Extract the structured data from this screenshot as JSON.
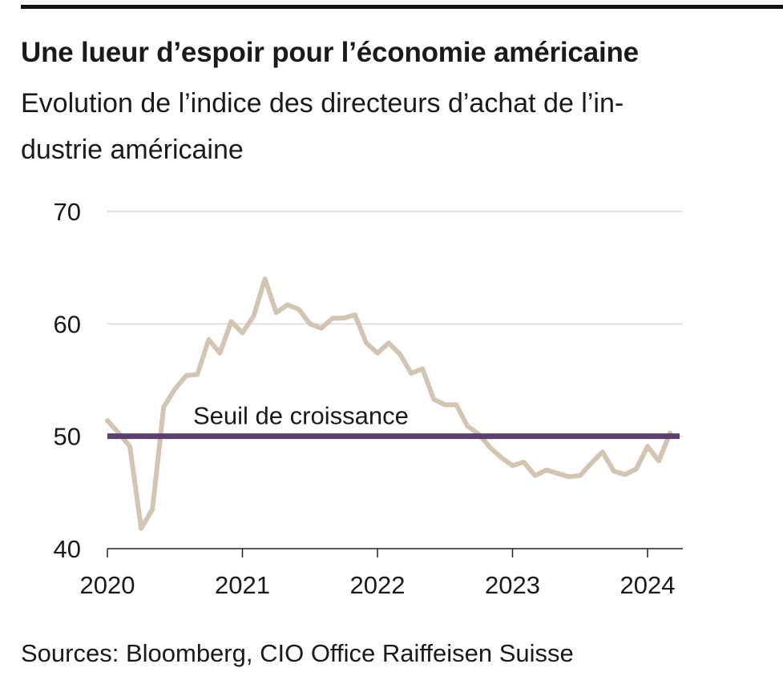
{
  "header": {
    "title": "Une lueur d’espoir pour l’économie américaine",
    "subtitle_line1": "Evolution de l’indice des directeurs d’achat de l’in-",
    "subtitle_line2": "dustrie américaine"
  },
  "footer": {
    "source": "Sources: Bloomberg, CIO Office Raiffeisen Suisse"
  },
  "chart_data": {
    "type": "line",
    "title": "Une lueur d’espoir pour l’économie américaine",
    "subtitle": "Evolution de l’indice des directeurs d’achat de l’industrie américaine",
    "xlabel": "",
    "ylabel": "",
    "ylim": [
      40,
      70
    ],
    "xlim": [
      "2020-01",
      "2024-04"
    ],
    "y_ticks": [
      "40",
      "50",
      "60",
      "70"
    ],
    "x_ticks": [
      "2020",
      "2021",
      "2022",
      "2023",
      "2024"
    ],
    "grid": true,
    "colors": {
      "series": "#d4c4b2",
      "threshold": "#5b3f6e",
      "grid": "#cfcfcf",
      "axis": "#222222"
    },
    "threshold": {
      "value": 50,
      "label": "Seuil de croissance"
    },
    "series": [
      {
        "x": [
          "2020-01",
          "2020-02",
          "2020-03",
          "2020-04",
          "2020-05",
          "2020-06",
          "2020-07",
          "2020-08",
          "2020-09",
          "2020-10",
          "2020-11",
          "2020-12",
          "2021-01",
          "2021-02",
          "2021-03",
          "2021-04",
          "2021-05",
          "2021-06",
          "2021-07",
          "2021-08",
          "2021-09",
          "2021-10",
          "2021-11",
          "2021-12",
          "2022-01",
          "2022-02",
          "2022-03",
          "2022-04",
          "2022-05",
          "2022-06",
          "2022-07",
          "2022-08",
          "2022-09",
          "2022-10",
          "2022-11",
          "2022-12",
          "2023-01",
          "2023-02",
          "2023-03",
          "2023-04",
          "2023-05",
          "2023-06",
          "2023-07",
          "2023-08",
          "2023-09",
          "2023-10",
          "2023-11",
          "2023-12",
          "2024-01",
          "2024-02",
          "2024-03"
        ],
        "values": [
          51.4,
          50.3,
          49.1,
          41.8,
          43.5,
          52.6,
          54.2,
          55.4,
          55.5,
          58.6,
          57.4,
          60.2,
          59.2,
          60.7,
          64.0,
          61.0,
          61.7,
          61.3,
          60.0,
          59.6,
          60.5,
          60.5,
          60.8,
          58.3,
          57.4,
          58.3,
          57.3,
          55.6,
          56.0,
          53.3,
          52.8,
          52.8,
          50.9,
          50.2,
          49.0,
          48.1,
          47.4,
          47.7,
          46.5,
          47.0,
          46.7,
          46.4,
          46.5,
          47.6,
          48.6,
          46.9,
          46.6,
          47.1,
          49.1,
          47.8,
          50.3
        ]
      }
    ]
  }
}
